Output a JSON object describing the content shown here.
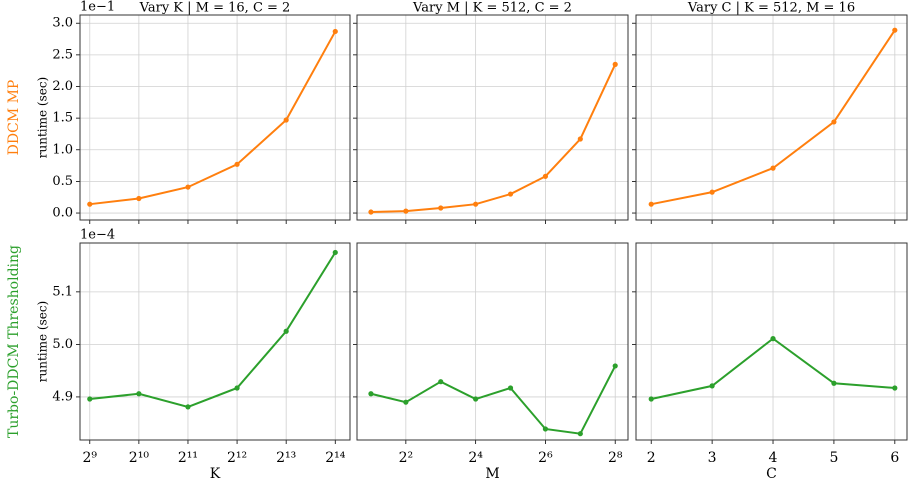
{
  "chart_data": [
    {
      "type": "line",
      "title": "Vary K  |  M = 16,  C = 2",
      "row_label": "DDCM MP",
      "ylabel": "runtime (sec)",
      "y_offset_label": "1e−1",
      "x": [
        512,
        1024,
        2048,
        4096,
        8192,
        16384
      ],
      "values": [
        0.14,
        0.23,
        0.41,
        0.77,
        1.47,
        2.87
      ],
      "color": "#ff7f0e",
      "ylim": [
        -0.11,
        3.13
      ],
      "yticks": [
        {
          "value": 0,
          "label": "0.0"
        },
        0.5,
        {
          "value": 1,
          "label": "1.0"
        },
        1.5,
        {
          "value": 2,
          "label": "2.0"
        },
        2.5,
        {
          "value": 3,
          "label": "3.0"
        }
      ],
      "grid": true
    },
    {
      "type": "line",
      "title": "Vary M  |  K = 512,  C = 2",
      "x": [
        2,
        4,
        8,
        16,
        32,
        64,
        128,
        256
      ],
      "values": [
        0.016,
        0.03,
        0.08,
        0.14,
        0.3,
        0.58,
        1.17,
        2.35
      ],
      "color": "#ff7f0e",
      "grid": true
    },
    {
      "type": "line",
      "title": "Vary C  |  K = 512,  M = 16",
      "x": [
        2,
        3,
        4,
        5,
        6
      ],
      "values": [
        0.14,
        0.33,
        0.71,
        1.44,
        2.89
      ],
      "color": "#ff7f0e",
      "grid": true
    },
    {
      "type": "line",
      "row_label": "Turbo-DDCM Thresholding",
      "ylabel": "runtime (sec)",
      "y_offset_label": "1e−4",
      "xlabel": "K",
      "x": [
        512,
        1024,
        2048,
        4096,
        8192,
        16384
      ],
      "values": [
        4.896,
        4.906,
        4.881,
        4.917,
        5.025,
        5.175
      ],
      "color": "#2ca02c",
      "xscale": "log",
      "xlim": [
        446,
        20171
      ],
      "xticks": [
        {
          "value": 512,
          "label": "2⁹"
        },
        {
          "value": 1024,
          "label": "2¹⁰"
        },
        {
          "value": 2048,
          "label": "2¹¹"
        },
        {
          "value": 4096,
          "label": "2¹²"
        },
        {
          "value": 8192,
          "label": "2¹³"
        },
        {
          "value": 16384,
          "label": "2¹⁴"
        }
      ],
      "ylim": [
        4.818,
        5.193
      ],
      "yticks": [
        4.9,
        {
          "value": 5,
          "label": "5.0"
        },
        5.1
      ],
      "grid": true
    },
    {
      "type": "line",
      "xlabel": "M",
      "x": [
        2,
        4,
        8,
        16,
        32,
        64,
        128,
        256
      ],
      "values": [
        4.906,
        4.89,
        4.929,
        4.896,
        4.917,
        4.839,
        4.83,
        4.959
      ],
      "color": "#2ca02c",
      "xscale": "log",
      "xlim": [
        1.516,
        330
      ],
      "xticks": [
        {
          "value": 4,
          "label": "2²"
        },
        {
          "value": 16,
          "label": "2⁴"
        },
        {
          "value": 64,
          "label": "2⁶"
        },
        {
          "value": 256,
          "label": "2⁸"
        }
      ],
      "grid": true
    },
    {
      "type": "line",
      "xlabel": "C",
      "x": [
        2,
        3,
        4,
        5,
        6
      ],
      "values": [
        4.896,
        4.921,
        5.011,
        4.926,
        4.917
      ],
      "color": "#2ca02c",
      "xlim": [
        1.75,
        6.2
      ],
      "xticks": [
        2,
        3,
        4,
        5,
        6
      ],
      "grid": true
    }
  ]
}
